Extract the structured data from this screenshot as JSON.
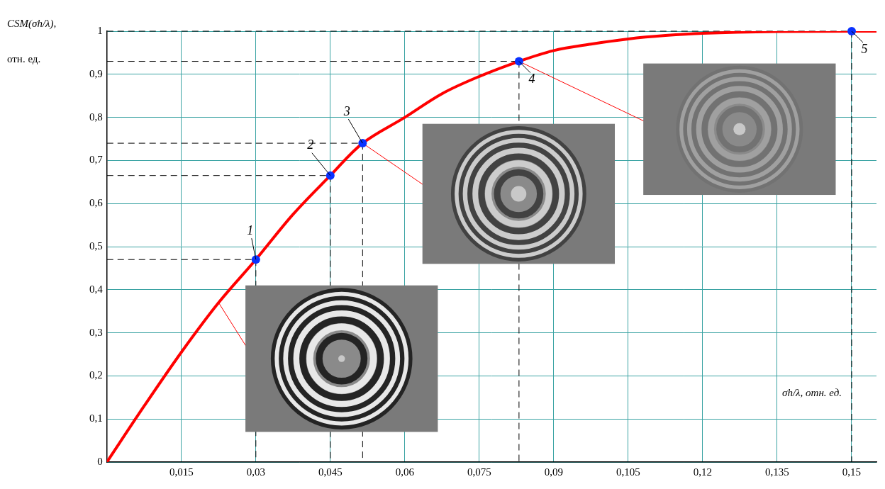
{
  "chart_data": {
    "type": "line",
    "x_label": "σh/λ, отн. ед.",
    "y_label": "CSM(σh/λ), отн. ед.",
    "xlim": [
      0,
      0.155
    ],
    "ylim": [
      0,
      1
    ],
    "xticks": [
      {
        "value": 0.015,
        "label": "0,015"
      },
      {
        "value": 0.03,
        "label": "0,03"
      },
      {
        "value": 0.045,
        "label": "0,045"
      },
      {
        "value": 0.06,
        "label": "0,06"
      },
      {
        "value": 0.075,
        "label": "0,075"
      },
      {
        "value": 0.09,
        "label": "0,09"
      },
      {
        "value": 0.105,
        "label": "0,105"
      },
      {
        "value": 0.12,
        "label": "0,12"
      },
      {
        "value": 0.135,
        "label": "0,135"
      },
      {
        "value": 0.15,
        "label": "0,15"
      }
    ],
    "yticks": [
      0,
      {
        "value": 0.1,
        "label": "0,1"
      },
      {
        "value": 0.2,
        "label": "0,2"
      },
      {
        "value": 0.3,
        "label": "0,3"
      },
      {
        "value": 0.4,
        "label": "0,4"
      },
      {
        "value": 0.5,
        "label": "0,5"
      },
      {
        "value": 0.6,
        "label": "0,6"
      },
      {
        "value": 0.7,
        "label": "0,7"
      },
      {
        "value": 0.8,
        "label": "0,8"
      },
      {
        "value": 0.9,
        "label": "0,9"
      },
      1
    ],
    "grid": true,
    "series": [
      {
        "type": "line",
        "color": "#ff0000",
        "line_style": "solid",
        "x": [
          0,
          0.0075,
          0.015,
          0.0225,
          0.03,
          0.0375,
          0.045,
          0.0515,
          0.06,
          0.0675,
          0.075,
          0.083,
          0.09,
          0.0975,
          0.105,
          0.1125,
          0.12,
          0.135,
          0.15,
          0.155
        ],
        "values": [
          0,
          0.13,
          0.255,
          0.37,
          0.47,
          0.575,
          0.665,
          0.74,
          0.8,
          0.855,
          0.895,
          0.93,
          0.955,
          0.97,
          0.982,
          0.99,
          0.995,
          0.999,
          1.0,
          1.0
        ]
      },
      {
        "type": "scatter",
        "color": "#0a32ff",
        "marker": "circle",
        "x": [
          0.03,
          0.045,
          0.0515,
          0.083,
          0.15
        ],
        "values": [
          0.47,
          0.665,
          0.74,
          0.93,
          1.0
        ],
        "labels": [
          "1",
          "2",
          "3",
          "4",
          "5"
        ]
      }
    ]
  }
}
